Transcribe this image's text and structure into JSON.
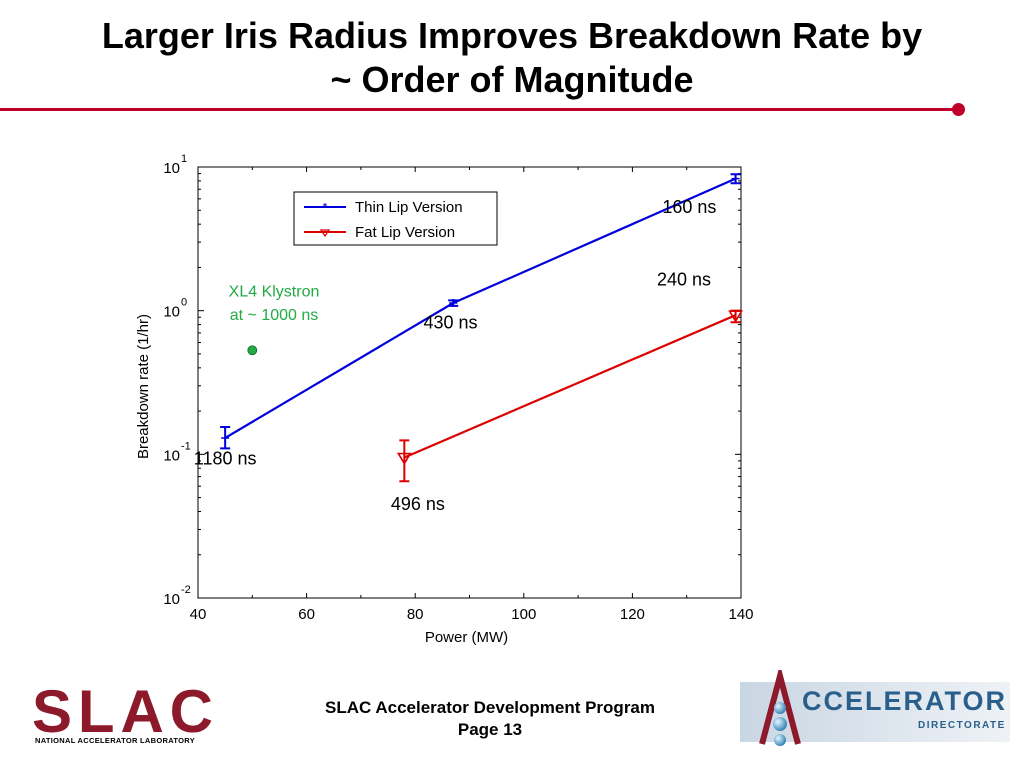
{
  "slide": {
    "title_line1": "Larger Iris Radius Improves Breakdown Rate by",
    "title_line2": "~ Order of Magnitude",
    "footer_line1": "SLAC Accelerator Development Program",
    "footer_line2": "Page 13",
    "slac_logo_text": "SLAC",
    "slac_logo_subtitle": "NATIONAL ACCELERATOR LABORATORY",
    "accelerator_logo_text": "CCELERATOR",
    "accelerator_logo_subtitle": "DIRECTORATE",
    "colors": {
      "title_rule": "#c0002a",
      "slac_red": "#8c1a2a"
    }
  },
  "chart_data": {
    "type": "line",
    "xlabel": "Power (MW)",
    "ylabel": "Breakdown rate (1/hr)",
    "xlim": [
      40,
      140
    ],
    "ylim": [
      0.01,
      10
    ],
    "yscale": "log",
    "x_ticks": [
      "40",
      "60",
      "80",
      "100",
      "120",
      "140"
    ],
    "y_ticks": [
      {
        "base": "10",
        "exp": "1",
        "value": 10
      },
      {
        "base": "10",
        "exp": "0",
        "value": 1
      },
      {
        "base": "10",
        "exp": "-1",
        "value": 0.1
      },
      {
        "base": "10",
        "exp": "-2",
        "value": 0.01
      }
    ],
    "legend": {
      "position": "top-left",
      "entries": [
        "Thin Lip Version",
        "Fat Lip Version"
      ]
    },
    "series": [
      {
        "name": "Thin Lip Version",
        "color": "#0000dd",
        "marker": "plus",
        "points": [
          {
            "x": 45,
            "y": 0.13,
            "err_low": 0.11,
            "err_high": 0.155
          },
          {
            "x": 87,
            "y": 1.13,
            "err_low": 1.08,
            "err_high": 1.18
          },
          {
            "x": 139,
            "y": 8.3,
            "err_low": 7.7,
            "err_high": 8.9
          }
        ]
      },
      {
        "name": "Fat Lip Version",
        "color": "#dd0000",
        "marker": "triangle-down",
        "points": [
          {
            "x": 78,
            "y": 0.095,
            "err_low": 0.065,
            "err_high": 0.125
          },
          {
            "x": 139,
            "y": 0.93,
            "err_low": 0.83,
            "err_high": 1.0
          }
        ]
      }
    ],
    "extra_points": [
      {
        "name": "XL4 Klystron",
        "x": 50,
        "y": 0.53,
        "color": "#22aa44"
      }
    ],
    "annotations": [
      {
        "text": "160 ns",
        "x": 130.5,
        "y": 4.8
      },
      {
        "text": "240 ns",
        "x": 129.5,
        "y": 1.5
      },
      {
        "text": "430 ns",
        "x": 86.5,
        "y": 0.75
      },
      {
        "text": "1180 ns",
        "x": 45,
        "y": 0.085
      },
      {
        "text": "496 ns",
        "x": 80.5,
        "y": 0.041
      },
      {
        "text": "XL4 Klystron",
        "x": 54,
        "y": 1.25,
        "color": "#22aa44"
      },
      {
        "text": "at ~ 1000 ns",
        "x": 54,
        "y": 0.86,
        "color": "#22aa44"
      }
    ]
  }
}
